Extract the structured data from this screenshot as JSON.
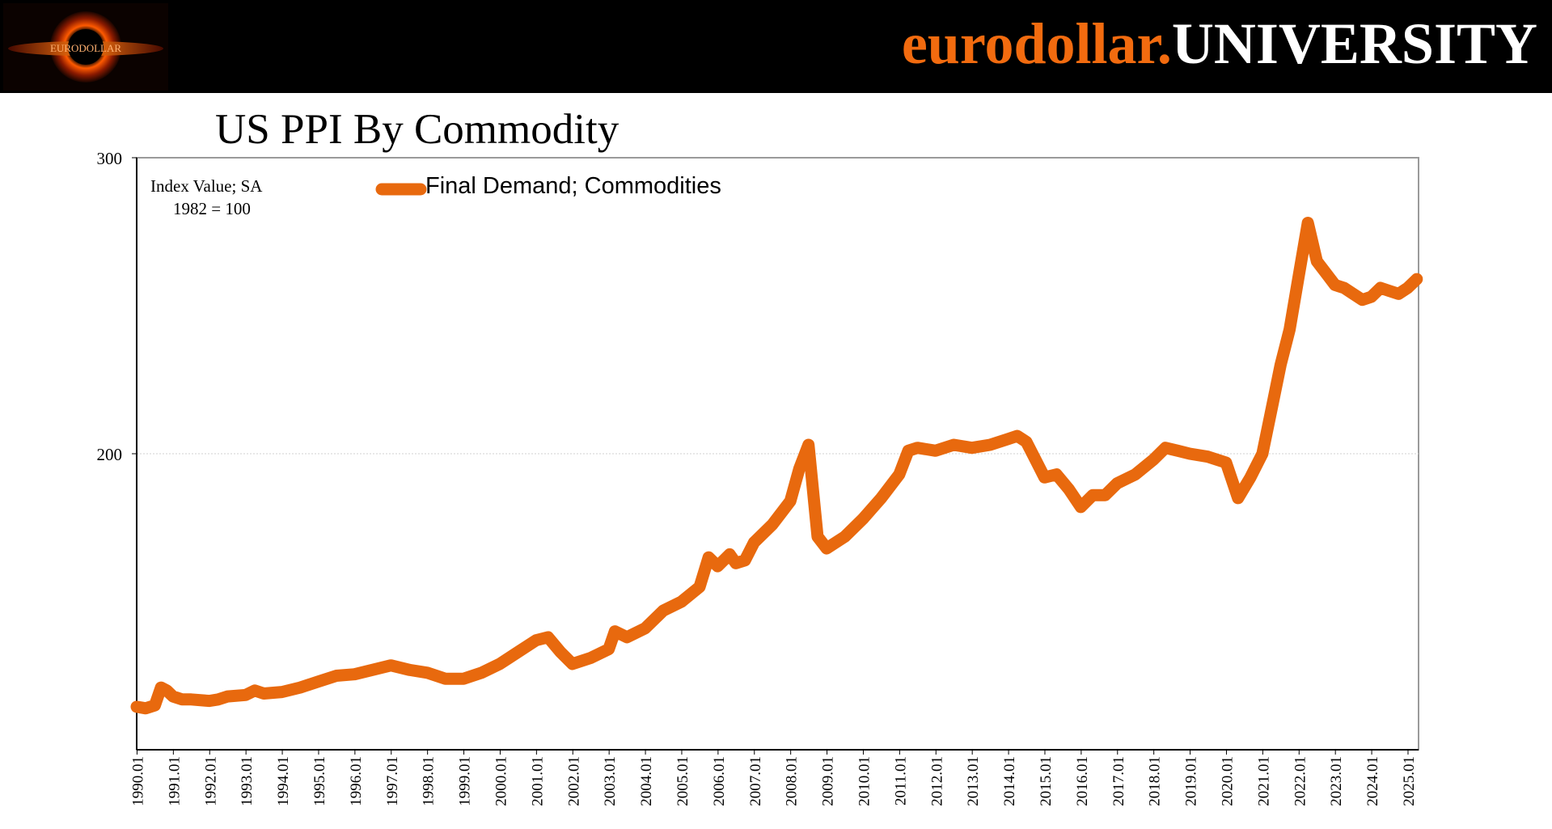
{
  "header": {
    "brand_part1": "eurodollar.",
    "brand_part2": "UNIVERSITY",
    "logo_text": "EURODOLLAR",
    "colors": {
      "banner_bg": "#000000",
      "brand_orange": "#f26b0f",
      "brand_white": "#ffffff"
    }
  },
  "chart_data": {
    "type": "line",
    "title": "US PPI By Commodity",
    "annotations": [
      "Index Value; SA",
      "1982 = 100"
    ],
    "ylim": [
      100,
      300
    ],
    "yticks": [
      "200",
      "300"
    ],
    "grid": true,
    "legend_position": "top-left",
    "xlabels": [
      "1990.01",
      "1991.01",
      "1992.01",
      "1993.01",
      "1994.01",
      "1995.01",
      "1996.01",
      "1997.01",
      "1998.01",
      "1999.01",
      "2000.01",
      "2001.01",
      "2002.01",
      "2003.01",
      "2004.01",
      "2005.01",
      "2006.01",
      "2007.01",
      "2008.01",
      "2009.01",
      "2010.01",
      "2011.01",
      "2012.01",
      "2013.01",
      "2014.01",
      "2015.01",
      "2016.01",
      "2017.01",
      "2018.01",
      "2019.01",
      "2020.01",
      "2021.01",
      "2022.01",
      "2023.01",
      "2024.01",
      "2025.01"
    ],
    "series": [
      {
        "name": "Final Demand; Commodities",
        "color": "#e8690e",
        "points": [
          [
            1990.0,
            114.5
          ],
          [
            1990.25,
            114
          ],
          [
            1990.5,
            115
          ],
          [
            1990.67,
            121
          ],
          [
            1990.83,
            120
          ],
          [
            1991.0,
            118
          ],
          [
            1991.25,
            117
          ],
          [
            1991.5,
            117
          ],
          [
            1992.0,
            116.5
          ],
          [
            1992.25,
            117
          ],
          [
            1992.5,
            118
          ],
          [
            1993.0,
            118.5
          ],
          [
            1993.25,
            120
          ],
          [
            1993.5,
            119
          ],
          [
            1994.0,
            119.5
          ],
          [
            1994.5,
            121
          ],
          [
            1995.0,
            123
          ],
          [
            1995.5,
            125
          ],
          [
            1996.0,
            125.5
          ],
          [
            1996.5,
            127
          ],
          [
            1997.0,
            128.5
          ],
          [
            1997.5,
            127
          ],
          [
            1998.0,
            126
          ],
          [
            1998.5,
            124
          ],
          [
            1999.0,
            124
          ],
          [
            1999.5,
            126
          ],
          [
            2000.0,
            129
          ],
          [
            2000.5,
            133
          ],
          [
            2001.0,
            137
          ],
          [
            2001.33,
            138
          ],
          [
            2001.67,
            133
          ],
          [
            2002.0,
            129
          ],
          [
            2002.5,
            131
          ],
          [
            2003.0,
            134
          ],
          [
            2003.17,
            140
          ],
          [
            2003.5,
            138
          ],
          [
            2004.0,
            141
          ],
          [
            2004.5,
            147
          ],
          [
            2005.0,
            150
          ],
          [
            2005.5,
            155
          ],
          [
            2005.75,
            165
          ],
          [
            2006.0,
            162
          ],
          [
            2006.33,
            166
          ],
          [
            2006.5,
            163
          ],
          [
            2006.75,
            164
          ],
          [
            2007.0,
            170
          ],
          [
            2007.5,
            176
          ],
          [
            2008.0,
            184
          ],
          [
            2008.25,
            195
          ],
          [
            2008.5,
            203
          ],
          [
            2008.75,
            172
          ],
          [
            2009.0,
            168
          ],
          [
            2009.5,
            172
          ],
          [
            2010.0,
            178
          ],
          [
            2010.5,
            185
          ],
          [
            2011.0,
            193
          ],
          [
            2011.25,
            201
          ],
          [
            2011.5,
            202
          ],
          [
            2012.0,
            201
          ],
          [
            2012.5,
            203
          ],
          [
            2013.0,
            202
          ],
          [
            2013.5,
            203
          ],
          [
            2014.0,
            205
          ],
          [
            2014.25,
            206
          ],
          [
            2014.5,
            204
          ],
          [
            2014.75,
            198
          ],
          [
            2015.0,
            192
          ],
          [
            2015.33,
            193
          ],
          [
            2015.67,
            188
          ],
          [
            2016.0,
            182
          ],
          [
            2016.33,
            186
          ],
          [
            2016.67,
            186
          ],
          [
            2017.0,
            190
          ],
          [
            2017.5,
            193
          ],
          [
            2018.0,
            198
          ],
          [
            2018.33,
            202
          ],
          [
            2018.67,
            201
          ],
          [
            2019.0,
            200
          ],
          [
            2019.5,
            199
          ],
          [
            2020.0,
            197
          ],
          [
            2020.33,
            185
          ],
          [
            2020.67,
            192
          ],
          [
            2021.0,
            200
          ],
          [
            2021.25,
            215
          ],
          [
            2021.5,
            230
          ],
          [
            2021.75,
            242
          ],
          [
            2022.0,
            260
          ],
          [
            2022.25,
            278
          ],
          [
            2022.5,
            265
          ],
          [
            2022.75,
            261
          ],
          [
            2023.0,
            257
          ],
          [
            2023.25,
            256
          ],
          [
            2023.5,
            254
          ],
          [
            2023.75,
            252
          ],
          [
            2024.0,
            253
          ],
          [
            2024.25,
            256
          ],
          [
            2024.5,
            255
          ],
          [
            2024.75,
            254
          ],
          [
            2025.0,
            256
          ],
          [
            2025.25,
            259
          ]
        ]
      }
    ]
  }
}
